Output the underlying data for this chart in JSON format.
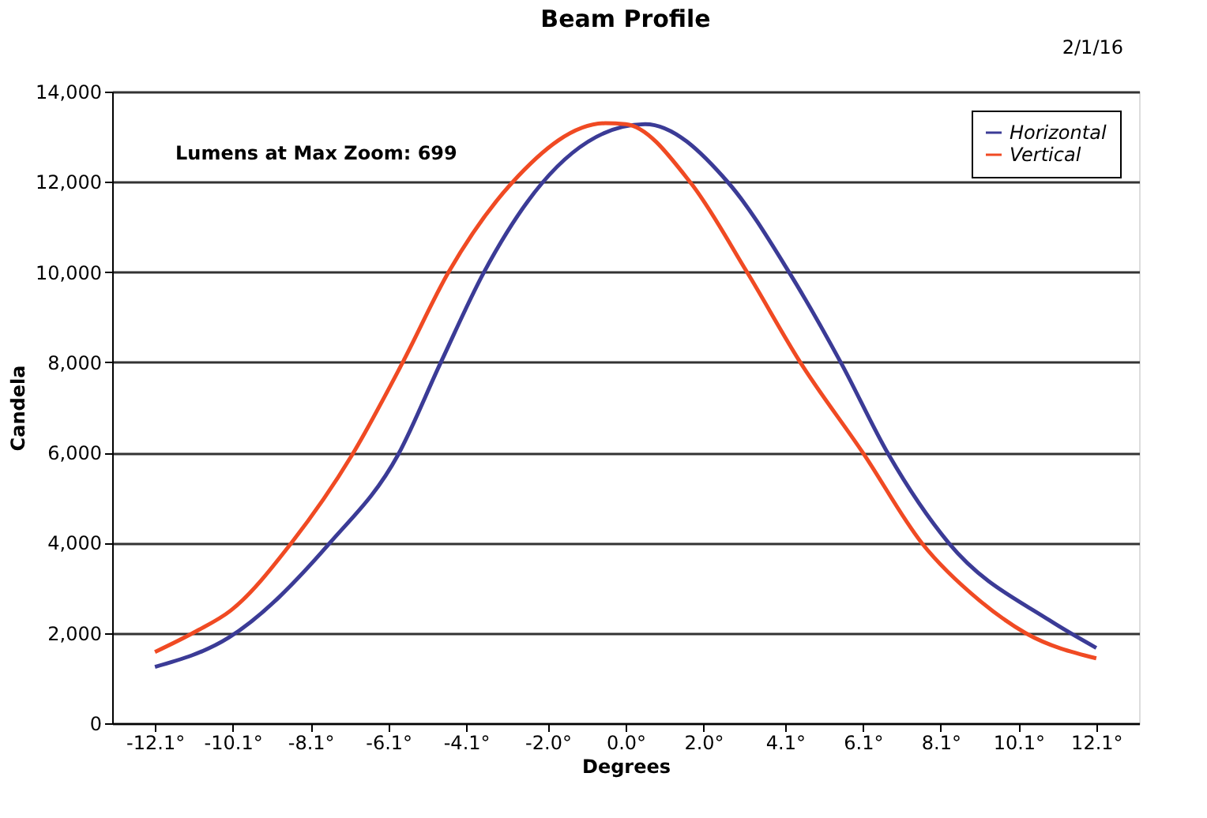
{
  "chart_data": {
    "type": "line",
    "title": "Beam Profile",
    "xlabel": "Degrees",
    "ylabel": "Candela",
    "annotations": [
      "Lumens at Max Zoom:     699",
      "2/1/16"
    ],
    "series": [
      {
        "name": "Horizontal",
        "color": "#3b3b96",
        "x": [
          -12.1,
          -10.2,
          -7.6,
          -5.85,
          -4.75,
          -3.64,
          -2.15,
          -0.08,
          0.5,
          2.65,
          4.2,
          5.53,
          6.75,
          8.3,
          10.9,
          12.1
        ],
        "values": [
          1250,
          1900,
          4000,
          5950,
          8000,
          10000,
          11970,
          13220,
          13280,
          11970,
          10000,
          8000,
          5970,
          4000,
          2280,
          1670
        ]
      },
      {
        "name": "Vertical",
        "color": "#f04a23",
        "x": [
          -12.1,
          -11.06,
          -10.15,
          -8.59,
          -7.03,
          -5.73,
          -4.55,
          -2.93,
          -0.52,
          0.0,
          1.68,
          3.12,
          4.49,
          6.12,
          7.61,
          9.1,
          10.28,
          12.1
        ],
        "values": [
          1580,
          2030,
          2500,
          4000,
          5950,
          8000,
          10000,
          11970,
          13300,
          13280,
          11970,
          10000,
          8000,
          5970,
          4000,
          2720,
          2000,
          1440
        ]
      }
    ],
    "xlim": [
      -13.2,
      13.2
    ],
    "xticks": [
      {
        "value": -12.1,
        "label": "-12.1°"
      },
      {
        "value": -10.1,
        "label": "-10.1°"
      },
      {
        "value": -8.1,
        "label": "-8.1°"
      },
      {
        "value": -6.1,
        "label": "-6.1°"
      },
      {
        "value": -4.1,
        "label": "-4.1°"
      },
      {
        "value": -2.0,
        "label": "-2.0°"
      },
      {
        "value": 0.0,
        "label": "0.0°"
      },
      {
        "value": 2.0,
        "label": "2.0°"
      },
      {
        "value": 4.1,
        "label": "4.1°"
      },
      {
        "value": 6.1,
        "label": "6.1°"
      },
      {
        "value": 8.1,
        "label": "8.1°"
      },
      {
        "value": 10.1,
        "label": "10.1°"
      },
      {
        "value": 12.1,
        "label": "12.1°"
      }
    ],
    "ylim": [
      0,
      14000
    ],
    "yticks": [
      {
        "value": 0,
        "label": "0"
      },
      {
        "value": 2000,
        "label": "2,000"
      },
      {
        "value": 4000,
        "label": "4,000"
      },
      {
        "value": 6000,
        "label": "6,000"
      },
      {
        "value": 8000,
        "label": "8,000"
      },
      {
        "value": 10000,
        "label": "10,000"
      },
      {
        "value": 12000,
        "label": "12,000"
      },
      {
        "value": 14000,
        "label": "14,000"
      }
    ],
    "grid": "y",
    "legend": "top right",
    "line_style": "solid",
    "marker": "none"
  }
}
